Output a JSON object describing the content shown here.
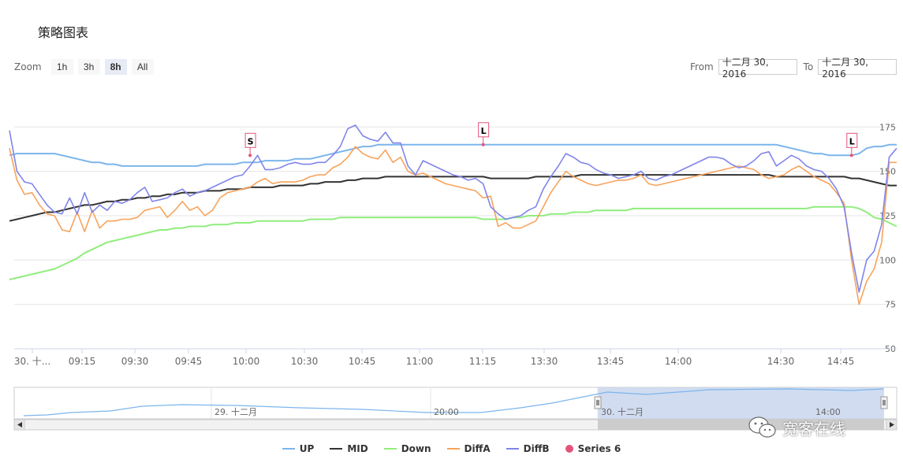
{
  "header": {
    "title": "策略图表"
  },
  "zoom": {
    "label": "Zoom",
    "buttons": [
      "1h",
      "3h",
      "8h",
      "All"
    ],
    "active": "8h"
  },
  "range": {
    "from_label": "From",
    "from_value": "十二月 30, 2016",
    "to_label": "To",
    "to_value": "十二月 30, 2016"
  },
  "navigator": {
    "labels": [
      "29. 十二月",
      "20:00",
      "30. 十二月",
      "14:00"
    ]
  },
  "watermark": {
    "text": "宽客在线"
  },
  "colors": {
    "UP": "#7cb5ec",
    "MID": "#333333",
    "Down": "#90ed7d",
    "DiffA": "#f7a35c",
    "DiffB": "#8085e9",
    "Series 6": "#e4547a"
  },
  "chart_data": {
    "type": "line",
    "yticks": [
      "175",
      "150",
      "125",
      "100",
      "75",
      "50"
    ],
    "ylim": [
      50,
      180
    ],
    "xticks": [
      "30. 十...",
      "09:15",
      "09:30",
      "09:45",
      "10:00",
      "10:30",
      "10:45",
      "11:00",
      "11:15",
      "13:30",
      "13:45",
      "14:00",
      "14:30",
      "14:45"
    ],
    "legend_position": "bottom",
    "flags": [
      {
        "label": "S",
        "series": "DiffB",
        "x_index": 32,
        "y": 159
      },
      {
        "label": "L",
        "series": "UP",
        "x_index": 63,
        "y": 165
      },
      {
        "label": "L",
        "series": "UP",
        "x_index": 112,
        "y": 159
      }
    ],
    "series": [
      {
        "name": "UP",
        "values": [
          159,
          160,
          160,
          160,
          160,
          160,
          160,
          159,
          158,
          157,
          156,
          155,
          155,
          154,
          154,
          153,
          153,
          153,
          153,
          153,
          153,
          153,
          153,
          153,
          153,
          153,
          154,
          154,
          154,
          154,
          154,
          155,
          155,
          155,
          156,
          156,
          156,
          156,
          157,
          157,
          157,
          158,
          159,
          160,
          161,
          162,
          163,
          164,
          164,
          165,
          165,
          165,
          165,
          165,
          165,
          165,
          165,
          165,
          165,
          165,
          165,
          165,
          165,
          165,
          165,
          165,
          165,
          165,
          165,
          165,
          165,
          165,
          165,
          165,
          165,
          165,
          165,
          165,
          165,
          165,
          165,
          165,
          165,
          165,
          165,
          165,
          165,
          165,
          165,
          165,
          165,
          165,
          165,
          165,
          165,
          165,
          165,
          165,
          165,
          165,
          165,
          165,
          165,
          164,
          163,
          162,
          161,
          160,
          160,
          159,
          159,
          159,
          159,
          160,
          163,
          164,
          164,
          165,
          165
        ]
      },
      {
        "name": "MID",
        "values": [
          122,
          123,
          124,
          125,
          126,
          127,
          127,
          128,
          129,
          130,
          131,
          131,
          132,
          133,
          133,
          134,
          134,
          135,
          135,
          136,
          136,
          137,
          137,
          138,
          138,
          138,
          139,
          139,
          139,
          140,
          140,
          140,
          141,
          141,
          141,
          141,
          142,
          142,
          142,
          142,
          143,
          143,
          144,
          144,
          144,
          145,
          145,
          146,
          146,
          146,
          147,
          147,
          147,
          147,
          147,
          147,
          147,
          147,
          147,
          147,
          147,
          147,
          147,
          147,
          146,
          146,
          146,
          146,
          146,
          146,
          147,
          147,
          147,
          147,
          147,
          147,
          148,
          148,
          148,
          148,
          148,
          148,
          148,
          148,
          148,
          148,
          148,
          148,
          148,
          148,
          148,
          148,
          148,
          148,
          148,
          148,
          148,
          148,
          148,
          148,
          148,
          148,
          147,
          147,
          147,
          147,
          147,
          147,
          147,
          147,
          147,
          147,
          146,
          146,
          145,
          144,
          143,
          142,
          142
        ]
      },
      {
        "name": "Down",
        "values": [
          89,
          90,
          91,
          92,
          93,
          94,
          95,
          97,
          99,
          101,
          104,
          106,
          108,
          110,
          111,
          112,
          113,
          114,
          115,
          116,
          117,
          117,
          118,
          118,
          119,
          119,
          119,
          120,
          120,
          120,
          121,
          121,
          121,
          122,
          122,
          122,
          122,
          122,
          122,
          122,
          123,
          123,
          123,
          123,
          124,
          124,
          124,
          124,
          124,
          124,
          124,
          124,
          124,
          124,
          124,
          124,
          124,
          124,
          124,
          124,
          124,
          124,
          124,
          123,
          123,
          123,
          123,
          124,
          124,
          125,
          125,
          125,
          126,
          126,
          126,
          127,
          127,
          127,
          128,
          128,
          128,
          128,
          128,
          129,
          129,
          129,
          129,
          129,
          129,
          129,
          129,
          129,
          129,
          129,
          129,
          129,
          129,
          129,
          129,
          129,
          129,
          129,
          129,
          129,
          129,
          129,
          129,
          130,
          130,
          130,
          130,
          130,
          130,
          129,
          127,
          124,
          123,
          121,
          119
        ]
      },
      {
        "name": "DiffA",
        "values": [
          163,
          145,
          137,
          138,
          131,
          126,
          125,
          117,
          116,
          127,
          116,
          128,
          118,
          122,
          122,
          123,
          123,
          124,
          128,
          129,
          130,
          124,
          128,
          133,
          128,
          130,
          125,
          128,
          135,
          138,
          139,
          140,
          141,
          144,
          146,
          143,
          144,
          144,
          144,
          145,
          147,
          148,
          148,
          152,
          154,
          158,
          164,
          160,
          158,
          157,
          162,
          155,
          158,
          150,
          148,
          149,
          147,
          145,
          143,
          142,
          141,
          140,
          139,
          135,
          136,
          119,
          121,
          118,
          118,
          120,
          122,
          130,
          138,
          144,
          150,
          147,
          145,
          143,
          142,
          143,
          144,
          145,
          145,
          146,
          148,
          143,
          142,
          143,
          144,
          145,
          146,
          147,
          148,
          149,
          150,
          151,
          152,
          153,
          152,
          151,
          148,
          146,
          147,
          148,
          151,
          153,
          150,
          147,
          145,
          143,
          138,
          132,
          100,
          75,
          88,
          95,
          110,
          155,
          155
        ]
      },
      {
        "name": "DiffB",
        "values": [
          173,
          150,
          144,
          143,
          137,
          131,
          127,
          126,
          135,
          126,
          138,
          127,
          131,
          128,
          133,
          132,
          134,
          138,
          141,
          133,
          134,
          135,
          138,
          140,
          136,
          138,
          139,
          141,
          143,
          145,
          147,
          148,
          153,
          159,
          151,
          151,
          152,
          154,
          155,
          154,
          154,
          155,
          155,
          159,
          164,
          174,
          176,
          170,
          168,
          167,
          172,
          166,
          166,
          153,
          148,
          156,
          154,
          152,
          150,
          148,
          147,
          145,
          146,
          143,
          130,
          126,
          123,
          124,
          125,
          128,
          130,
          140,
          147,
          153,
          160,
          158,
          155,
          154,
          151,
          149,
          148,
          146,
          147,
          148,
          150,
          146,
          145,
          147,
          148,
          150,
          152,
          154,
          156,
          158,
          158,
          157,
          154,
          152,
          153,
          156,
          160,
          161,
          153,
          156,
          159,
          157,
          153,
          151,
          150,
          146,
          140,
          130,
          104,
          82,
          100,
          105,
          120,
          158,
          163
        ]
      },
      {
        "name": "Series 6",
        "values": []
      }
    ]
  }
}
